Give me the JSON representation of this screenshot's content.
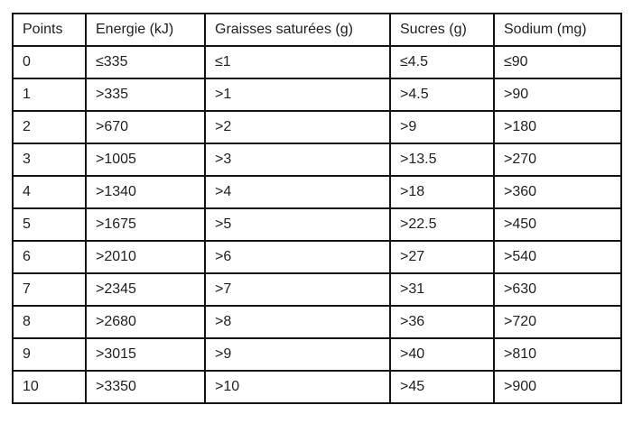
{
  "table": {
    "columns": [
      {
        "key": "points",
        "label": "Points"
      },
      {
        "key": "energie",
        "label": "Energie (kJ)"
      },
      {
        "key": "graisses",
        "label": "Graisses saturées (g)"
      },
      {
        "key": "sucres",
        "label": "Sucres (g)"
      },
      {
        "key": "sodium",
        "label": "Sodium (mg)"
      }
    ],
    "rows": [
      [
        "0",
        "≤335",
        "≤1",
        "≤4.5",
        "≤90"
      ],
      [
        "1",
        ">335",
        ">1",
        ">4.5",
        ">90"
      ],
      [
        "2",
        ">670",
        ">2",
        ">9",
        ">180"
      ],
      [
        "3",
        ">1005",
        ">3",
        ">13.5",
        ">270"
      ],
      [
        "4",
        ">1340",
        ">4",
        ">18",
        ">360"
      ],
      [
        "5",
        ">1675",
        ">5",
        ">22.5",
        ">450"
      ],
      [
        "6",
        ">2010",
        ">6",
        ">27",
        ">540"
      ],
      [
        "7",
        ">2345",
        ">7",
        ">31",
        ">630"
      ],
      [
        "8",
        ">2680",
        ">8",
        ">36",
        ">720"
      ],
      [
        "9",
        ">3015",
        ">9",
        ">40",
        ">810"
      ],
      [
        "10",
        ">3350",
        ">10",
        ">45",
        ">900"
      ]
    ],
    "colors": {
      "border": "#141414",
      "text": "#1f1f1f",
      "background": "#ffffff"
    }
  }
}
